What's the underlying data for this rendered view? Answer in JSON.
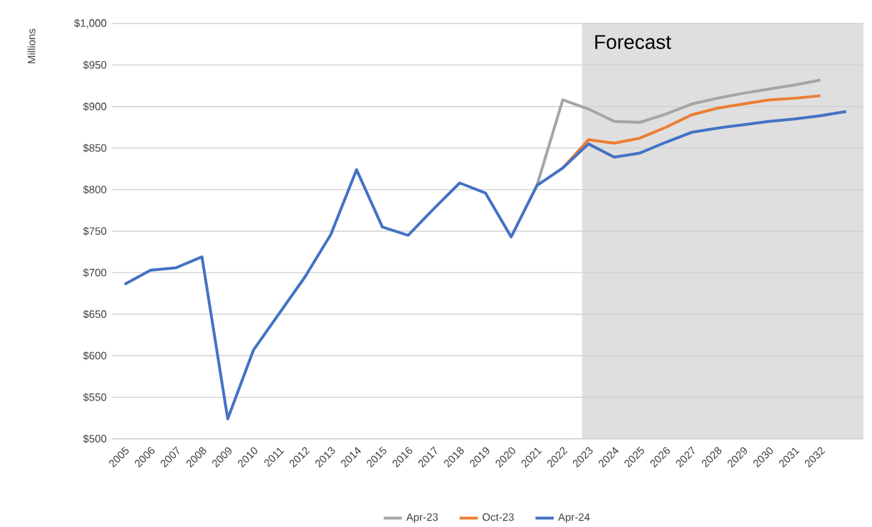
{
  "chart_data": {
    "type": "line",
    "ylabel": "Millions",
    "x": [
      2005,
      2006,
      2007,
      2008,
      2009,
      2010,
      2011,
      2012,
      2013,
      2014,
      2015,
      2016,
      2017,
      2018,
      2019,
      2020,
      2021,
      2022,
      2023,
      2024,
      2025,
      2026,
      2027,
      2028,
      2029,
      2030,
      2031,
      2032,
      2033
    ],
    "series": [
      {
        "name": "Apr-23",
        "color": "#a5a5a5",
        "values": [
          null,
          null,
          null,
          null,
          null,
          null,
          null,
          null,
          null,
          null,
          null,
          null,
          null,
          null,
          null,
          null,
          805,
          908,
          897,
          882,
          881,
          891,
          903,
          910,
          916,
          921,
          926,
          932,
          null
        ]
      },
      {
        "name": "Oct-23",
        "color": "#ed7d31",
        "values": [
          null,
          null,
          null,
          null,
          null,
          null,
          null,
          null,
          null,
          null,
          null,
          null,
          null,
          null,
          null,
          null,
          null,
          826,
          860,
          856,
          862,
          875,
          890,
          898,
          903,
          908,
          910,
          913,
          null
        ]
      },
      {
        "name": "Apr-24",
        "color": "#4472c4",
        "values": [
          686,
          703,
          706,
          719,
          524,
          607,
          651,
          695,
          746,
          824,
          755,
          745,
          777,
          808,
          796,
          743,
          805,
          826,
          855,
          839,
          844,
          857,
          869,
          874,
          878,
          882,
          885,
          889,
          894
        ]
      }
    ],
    "xlim": [
      2004.5,
      2033.67
    ],
    "xticks": [
      2005,
      2006,
      2007,
      2008,
      2009,
      2010,
      2011,
      2012,
      2013,
      2014,
      2015,
      2016,
      2017,
      2018,
      2019,
      2020,
      2021,
      2022,
      2023,
      2024,
      2025,
      2026,
      2027,
      2028,
      2029,
      2030,
      2031,
      2032
    ],
    "ylim": [
      500,
      1000
    ],
    "yticks": [
      {
        "value": 500,
        "label": "$500"
      },
      {
        "value": 550,
        "label": "$550"
      },
      {
        "value": 600,
        "label": "$600"
      },
      {
        "value": 650,
        "label": "$650"
      },
      {
        "value": 700,
        "label": "$700"
      },
      {
        "value": 750,
        "label": "$750"
      },
      {
        "value": 800,
        "label": "$800"
      },
      {
        "value": 850,
        "label": "$850"
      },
      {
        "value": 900,
        "label": "$900"
      },
      {
        "value": 950,
        "label": "$950"
      },
      {
        "value": 1000,
        "label": "$1,000"
      }
    ],
    "bands": [
      {
        "axis": "x",
        "from": 2022.75,
        "to": 2033.67,
        "label": "Forecast",
        "color": "#dfdfdf"
      }
    ],
    "grid": "y",
    "legend": "bottom",
    "marker": "none",
    "line_style": "solid"
  }
}
